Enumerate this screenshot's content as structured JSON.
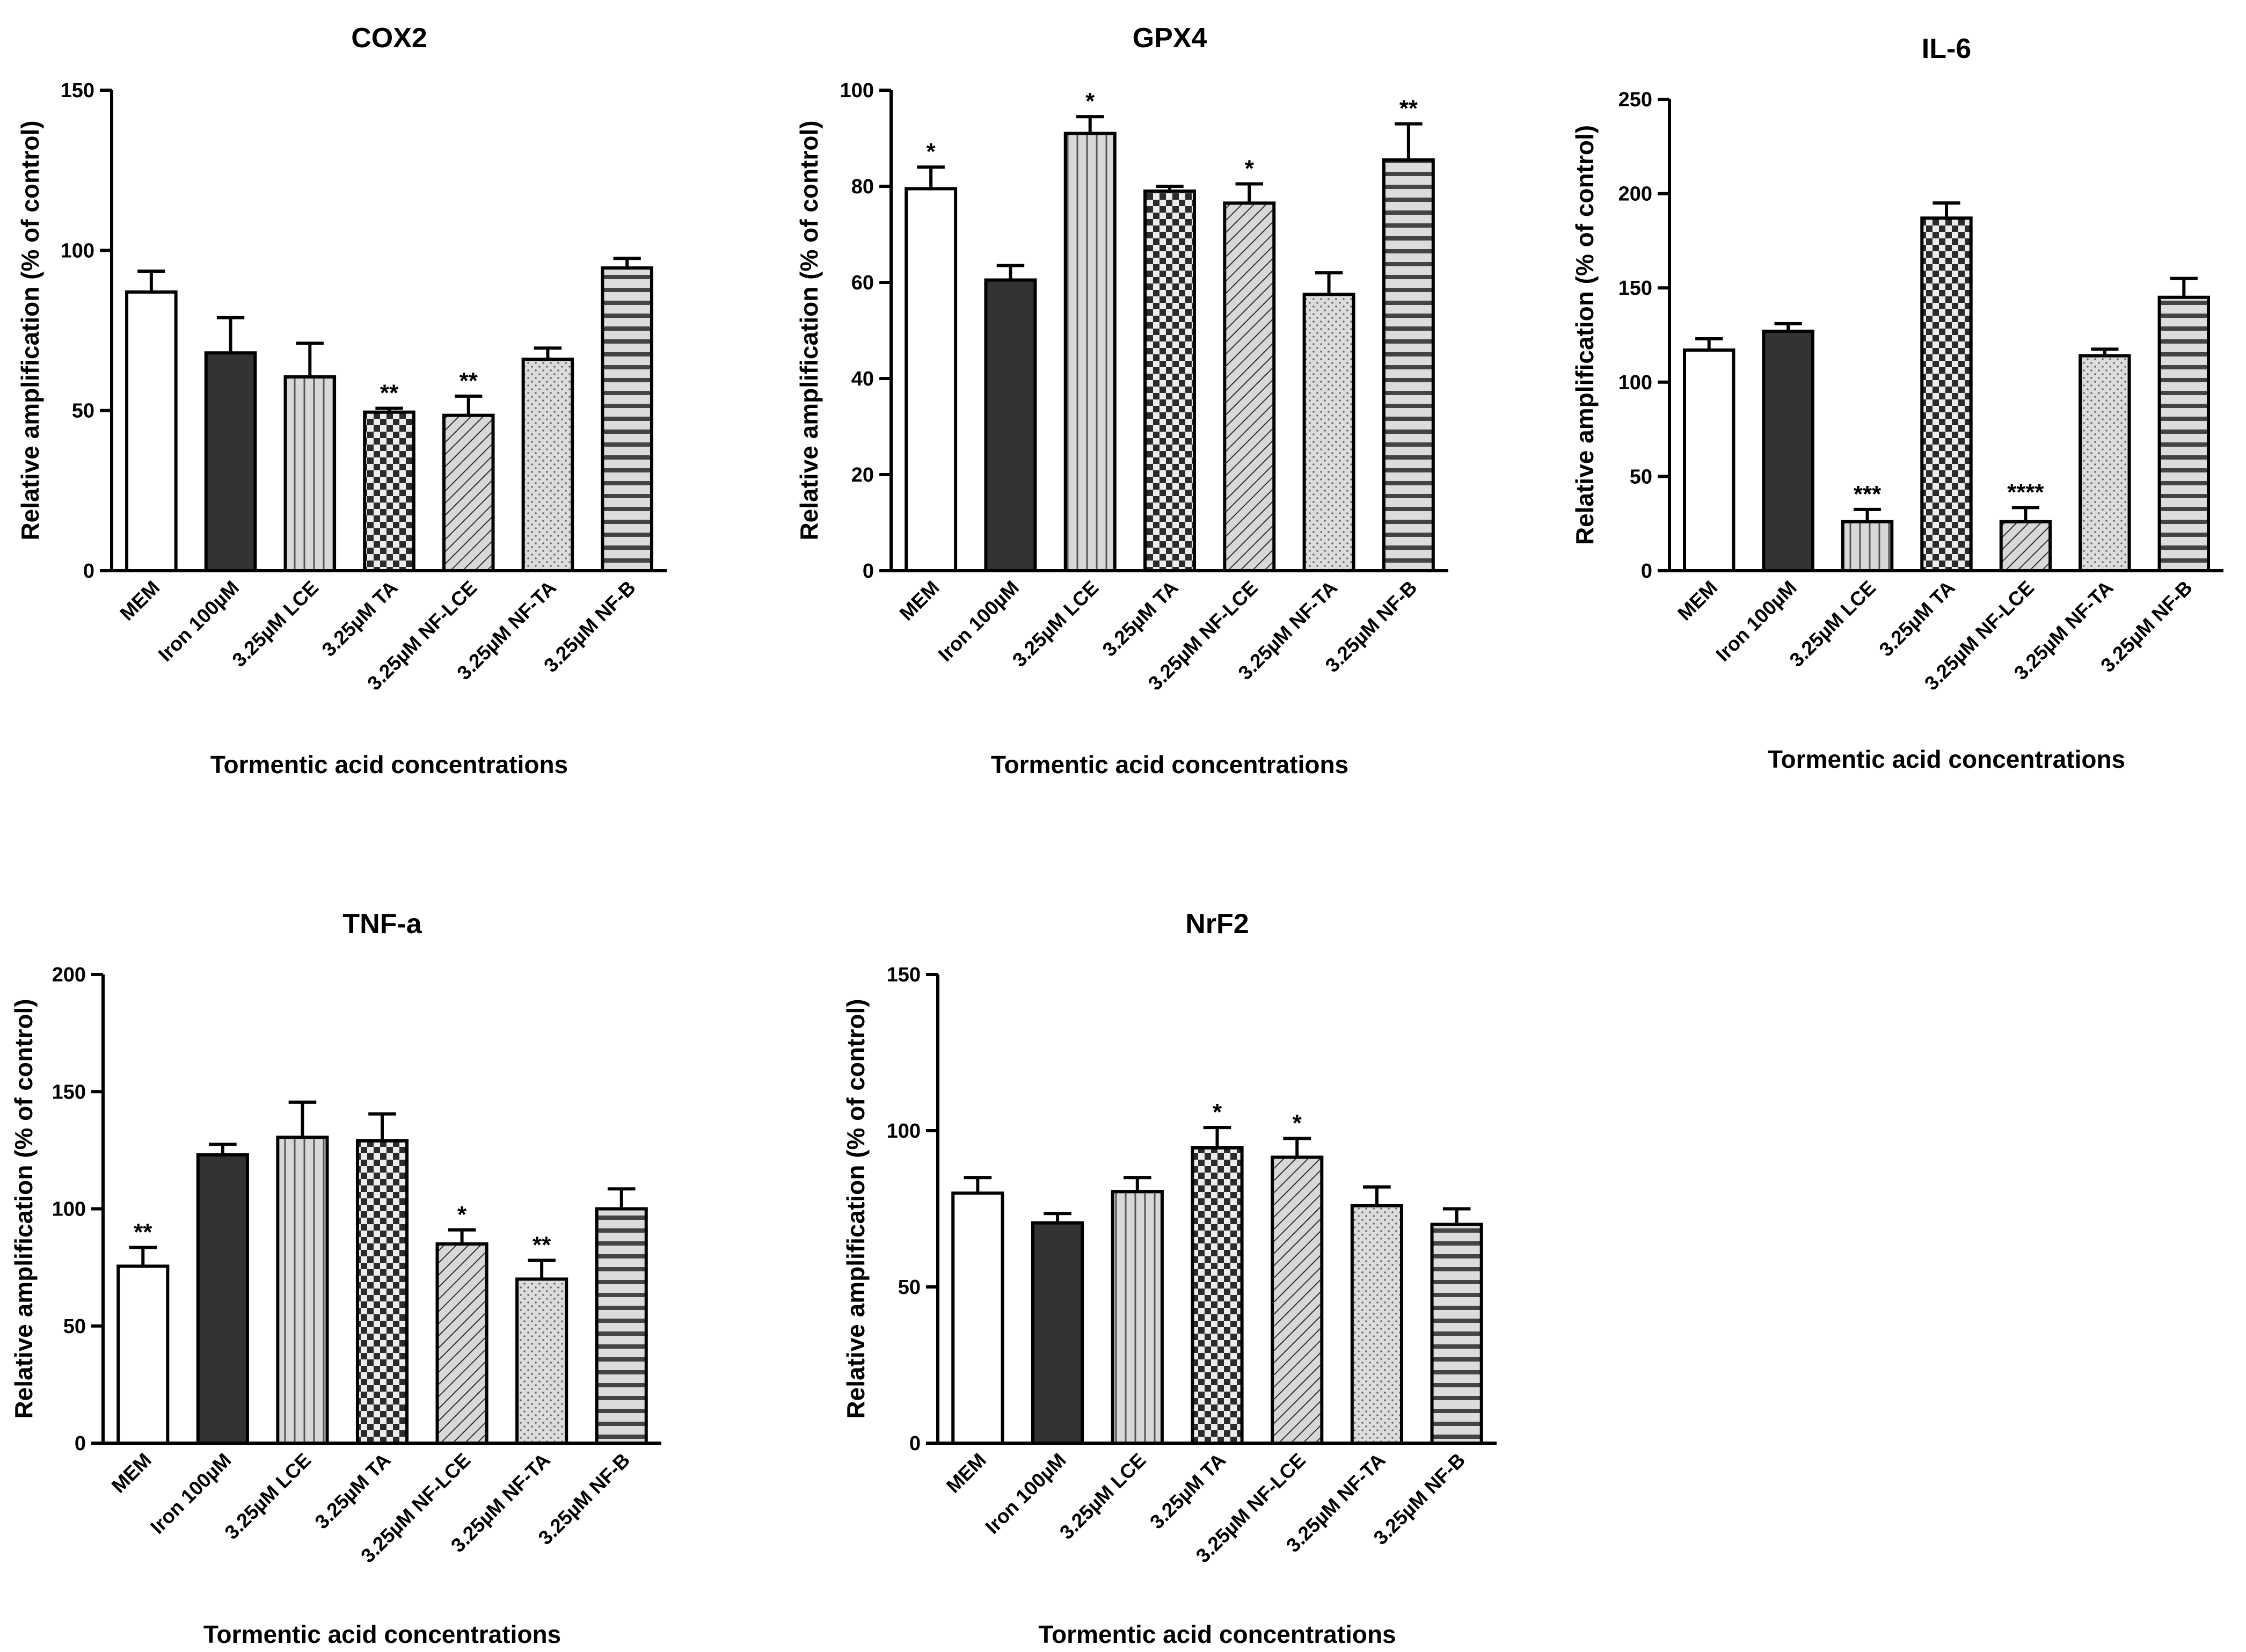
{
  "figure_title": "",
  "chart_data": [
    {
      "type": "bar",
      "title": "COX2",
      "xlabel": "Tormentic acid concentrations",
      "ylabel": "Relative amplification (% of control)",
      "ylim": [
        0,
        150
      ],
      "yticks": [
        0,
        50,
        100,
        150
      ],
      "categories": [
        "MEM",
        "Iron 100µM",
        "3.25µM LCE",
        "3.25µM TA",
        "3.25µM NF-LCE",
        "3.25µM NF-TA",
        "3.25µM NF-B"
      ],
      "values": [
        87,
        68,
        60.5,
        49.5,
        48.5,
        66,
        94.5
      ],
      "errors": [
        6.5,
        11,
        10.5,
        1.2,
        6,
        3.5,
        3
      ],
      "significance": [
        "",
        "",
        "",
        "**",
        "**",
        "",
        ""
      ],
      "bar_colors": [
        "#ffffff",
        "#333333",
        "#d8d8d8",
        "#2b2b2b",
        "#d8d8d8",
        "#dcdcdc",
        "#d8d8d8"
      ],
      "patterns": [
        "none",
        "solid",
        "vlines",
        "checker",
        "diag",
        "dots",
        "hlines"
      ]
    },
    {
      "type": "bar",
      "title": "GPX4",
      "xlabel": "Tormentic acid concentrations",
      "ylabel": "Relative amplification (% of control)",
      "ylim": [
        0,
        100
      ],
      "yticks": [
        0,
        20,
        40,
        60,
        80,
        100
      ],
      "categories": [
        "MEM",
        "Iron 100µM",
        "3.25µM LCE",
        "3.25µM TA",
        "3.25µM NF-LCE",
        "3.25µM NF-TA",
        "3.25µM NF-B"
      ],
      "values": [
        79.5,
        60.5,
        91,
        79,
        76.5,
        57.5,
        85.5
      ],
      "errors": [
        4.5,
        3,
        3.5,
        1,
        4,
        4.5,
        7.5
      ],
      "significance": [
        "*",
        "",
        "*",
        "",
        "*",
        "",
        "**"
      ],
      "bar_colors": [
        "#ffffff",
        "#333333",
        "#d8d8d8",
        "#2b2b2b",
        "#d8d8d8",
        "#dcdcdc",
        "#d8d8d8"
      ],
      "patterns": [
        "none",
        "solid",
        "vlines",
        "checker",
        "diag",
        "dots",
        "hlines"
      ]
    },
    {
      "type": "bar",
      "title": "IL-6",
      "xlabel": "Tormentic acid concentrations",
      "ylabel": "Relative amplification (% of control)",
      "ylim": [
        0,
        250
      ],
      "yticks": [
        0,
        50,
        100,
        150,
        200,
        250
      ],
      "categories": [
        "MEM",
        "Iron 100µM",
        "3.25µM LCE",
        "3.25µM TA",
        "3.25µM NF-LCE",
        "3.25µM NF-TA",
        "3.25µM NF-B"
      ],
      "values": [
        117,
        127,
        26,
        187,
        26,
        114,
        145
      ],
      "errors": [
        6,
        4,
        6.5,
        8,
        7.5,
        3.5,
        10
      ],
      "significance": [
        "",
        "",
        "***",
        "",
        "****",
        "",
        ""
      ],
      "bar_colors": [
        "#ffffff",
        "#333333",
        "#d8d8d8",
        "#2b2b2b",
        "#d8d8d8",
        "#dcdcdc",
        "#d8d8d8"
      ],
      "patterns": [
        "none",
        "solid",
        "vlines",
        "checker",
        "diag",
        "dots",
        "hlines"
      ]
    },
    {
      "type": "bar",
      "title": "TNF-a",
      "xlabel": "Tormentic acid concentrations",
      "ylabel": "Relative amplification (% of control)",
      "ylim": [
        0,
        200
      ],
      "yticks": [
        0,
        50,
        100,
        150,
        200
      ],
      "categories": [
        "MEM",
        "Iron 100µM",
        "3.25µM LCE",
        "3.25µM TA",
        "3.25µM NF-LCE",
        "3.25µM NF-TA",
        "3.25µM NF-B"
      ],
      "values": [
        75.5,
        123,
        130.5,
        129,
        85,
        70,
        100
      ],
      "errors": [
        8,
        4.5,
        15,
        11.5,
        6,
        8,
        8.5
      ],
      "significance": [
        "**",
        "",
        "",
        "",
        "*",
        "**",
        ""
      ],
      "bar_colors": [
        "#ffffff",
        "#333333",
        "#d8d8d8",
        "#2b2b2b",
        "#d8d8d8",
        "#dcdcdc",
        "#d8d8d8"
      ],
      "patterns": [
        "none",
        "solid",
        "vlines",
        "checker",
        "diag",
        "dots",
        "hlines"
      ]
    },
    {
      "type": "bar",
      "title": "NrF2",
      "xlabel": "Tormentic acid concentrations",
      "ylabel": "Relative amplification (% of control)",
      "ylim": [
        0,
        150
      ],
      "yticks": [
        0,
        50,
        100,
        150
      ],
      "categories": [
        "MEM",
        "Iron 100µM",
        "3.25µM LCE",
        "3.25µM TA",
        "3.25µM NF-LCE",
        "3.25µM NF-TA",
        "3.25µM NF-B"
      ],
      "values": [
        80,
        70.5,
        80.5,
        94.5,
        91.5,
        76,
        70
      ],
      "errors": [
        5,
        3,
        4.5,
        6.5,
        6,
        6,
        5
      ],
      "significance": [
        "",
        "",
        "",
        "*",
        "*",
        "",
        ""
      ],
      "bar_colors": [
        "#ffffff",
        "#333333",
        "#d8d8d8",
        "#2b2b2b",
        "#d8d8d8",
        "#dcdcdc",
        "#d8d8d8"
      ],
      "patterns": [
        "none",
        "solid",
        "vlines",
        "checker",
        "diag",
        "dots",
        "hlines"
      ]
    }
  ]
}
